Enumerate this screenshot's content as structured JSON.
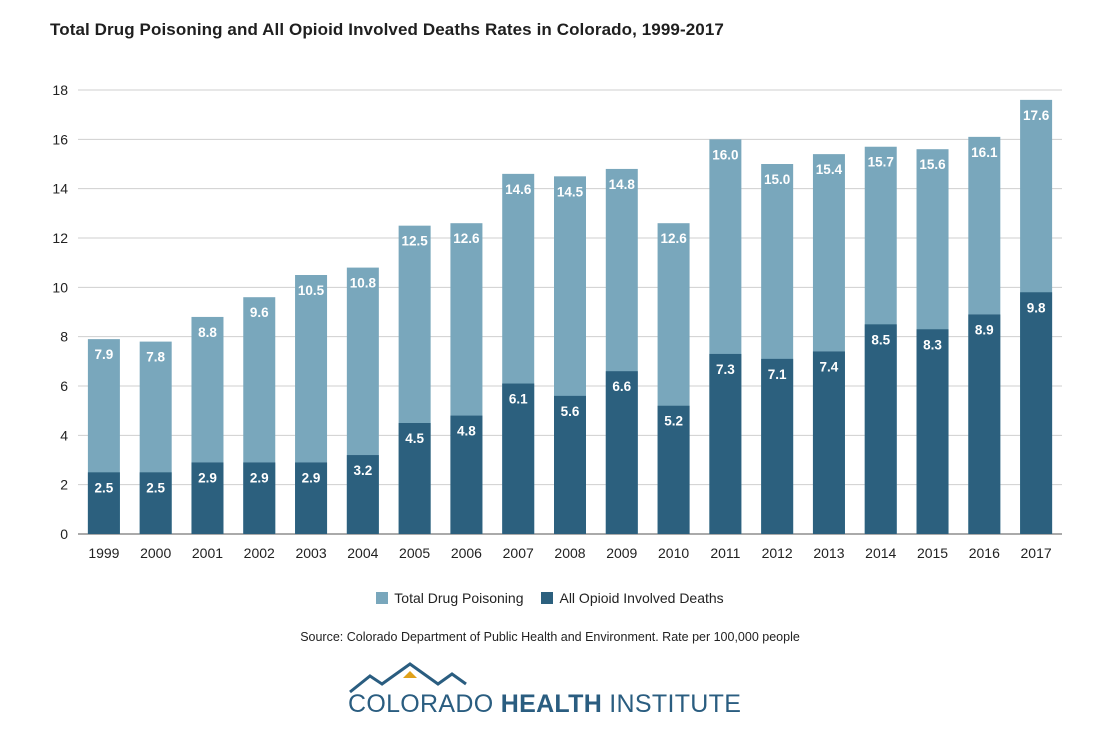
{
  "colors": {
    "total": "#79a7bc",
    "opioid": "#2c607e",
    "grid": "#cfcfcf",
    "axis": "#555555",
    "logo_blue": "#2a5d80",
    "logo_gold": "#e0a11b"
  },
  "chart_data": {
    "type": "bar",
    "stacked_overlay": true,
    "title": "Total Drug Poisoning and All Opioid Involved Deaths Rates in Colorado, 1999-2017",
    "xlabel": "",
    "ylabel": "",
    "ylim": [
      0,
      18
    ],
    "yticks": [
      0,
      2,
      4,
      6,
      8,
      10,
      12,
      14,
      16,
      18
    ],
    "grid": true,
    "legend_position": "bottom-center",
    "categories": [
      "1999",
      "2000",
      "2001",
      "2002",
      "2003",
      "2004",
      "2005",
      "2006",
      "2007",
      "2008",
      "2009",
      "2010",
      "2011",
      "2012",
      "2013",
      "2014",
      "2015",
      "2016",
      "2017"
    ],
    "series": [
      {
        "name": "Total Drug Poisoning",
        "color_key": "total",
        "values": [
          7.9,
          7.8,
          8.8,
          9.6,
          10.5,
          10.8,
          12.5,
          12.6,
          14.6,
          14.5,
          14.8,
          12.6,
          16.0,
          15.0,
          15.4,
          15.7,
          15.6,
          16.1,
          17.6
        ],
        "labels": [
          "7.9",
          "7.8",
          "8.8",
          "9.6",
          "10.5",
          "10.8",
          "12.5",
          "12.6",
          "14.6",
          "14.5",
          "14.8",
          "12.6",
          "16.0",
          "15.0",
          "15.4",
          "15.7",
          "15.6",
          "16.1",
          "17.6"
        ]
      },
      {
        "name": "All Opioid Involved Deaths",
        "color_key": "opioid",
        "values": [
          2.5,
          2.5,
          2.9,
          2.9,
          2.9,
          3.2,
          4.5,
          4.8,
          6.1,
          5.6,
          6.6,
          5.2,
          7.3,
          7.1,
          7.4,
          8.5,
          8.3,
          8.9,
          9.8
        ],
        "labels": [
          "2.5",
          "2.5",
          "2.9",
          "2.9",
          "2.9",
          "3.2",
          "4.5",
          "4.8",
          "6.1",
          "5.6",
          "6.6",
          "5.2",
          "7.3",
          "7.1",
          "7.4",
          "8.5",
          "8.3",
          "8.9",
          "9.8"
        ]
      }
    ]
  },
  "legend": {
    "total_label": "Total Drug Poisoning",
    "opioid_label": "All Opioid Involved Deaths"
  },
  "source": "Source: Colorado Department of Public Health and Environment. Rate per 100,000 people",
  "logo": {
    "text_part1": "COLORADO ",
    "text_part2": "HEALTH",
    "text_part3": " INSTITUTE",
    "icon": "mountain-icon"
  }
}
